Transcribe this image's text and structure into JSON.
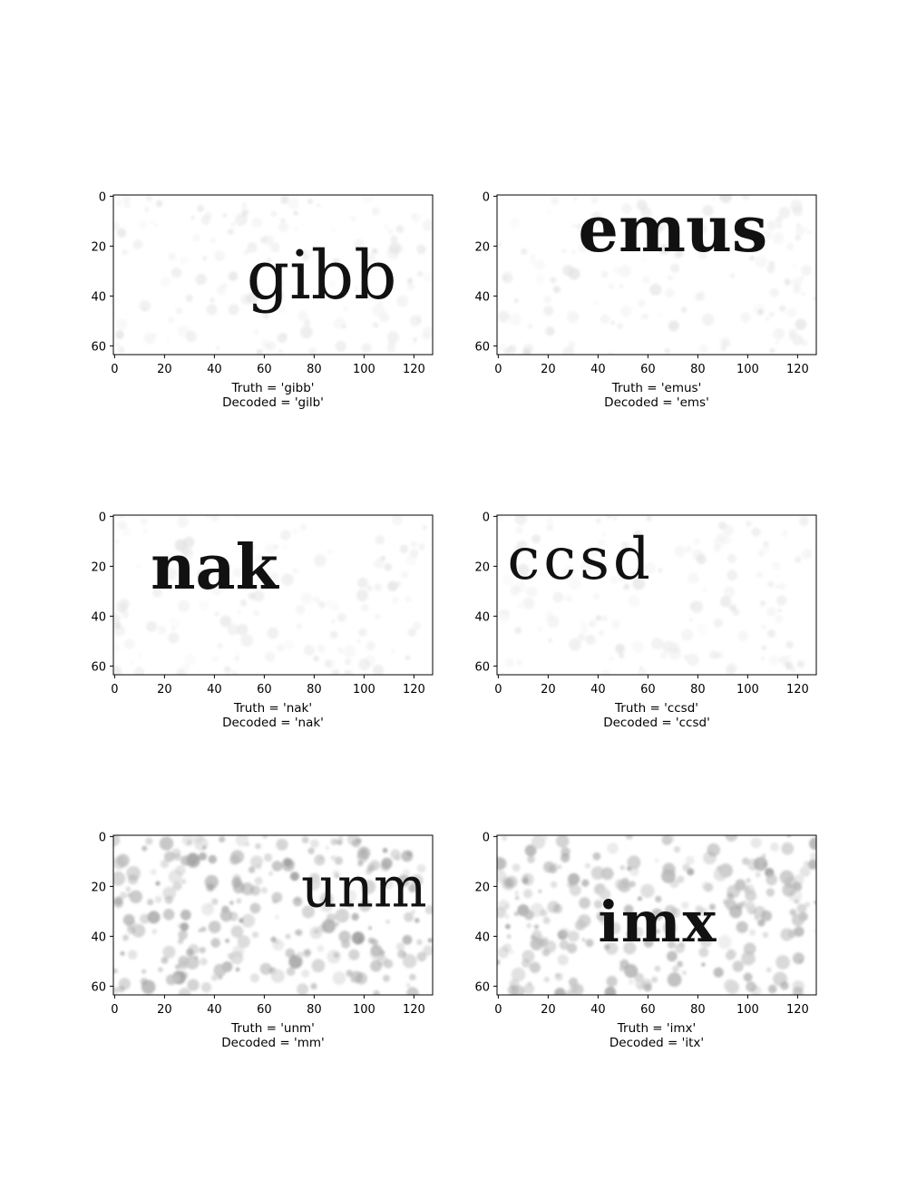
{
  "chart_data": [
    {
      "type": "image",
      "image_size": [
        128,
        64
      ],
      "xticks": [
        0,
        20,
        40,
        60,
        80,
        100,
        120
      ],
      "yticks": [
        0,
        20,
        40,
        60
      ],
      "word_text": "gibb",
      "noise": "light",
      "caption": {
        "truth": "Truth = 'gibb'",
        "decoded": "Decoded = 'gilb'"
      }
    },
    {
      "type": "image",
      "image_size": [
        128,
        64
      ],
      "xticks": [
        0,
        20,
        40,
        60,
        80,
        100,
        120
      ],
      "yticks": [
        0,
        20,
        40,
        60
      ],
      "word_text": "emus",
      "noise": "light",
      "caption": {
        "truth": "Truth = 'emus'",
        "decoded": "Decoded = 'ems'"
      }
    },
    {
      "type": "image",
      "image_size": [
        128,
        64
      ],
      "xticks": [
        0,
        20,
        40,
        60,
        80,
        100,
        120
      ],
      "yticks": [
        0,
        20,
        40,
        60
      ],
      "word_text": "nak",
      "noise": "light",
      "caption": {
        "truth": "Truth = 'nak'",
        "decoded": "Decoded = 'nak'"
      }
    },
    {
      "type": "image",
      "image_size": [
        128,
        64
      ],
      "xticks": [
        0,
        20,
        40,
        60,
        80,
        100,
        120
      ],
      "yticks": [
        0,
        20,
        40,
        60
      ],
      "word_text": "ccsd",
      "noise": "light",
      "caption": {
        "truth": "Truth = 'ccsd'",
        "decoded": "Decoded = 'ccsd'"
      }
    },
    {
      "type": "image",
      "image_size": [
        128,
        64
      ],
      "xticks": [
        0,
        20,
        40,
        60,
        80,
        100,
        120
      ],
      "yticks": [
        0,
        20,
        40,
        60
      ],
      "word_text": "unm",
      "noise": "heavy",
      "caption": {
        "truth": "Truth = 'unm'",
        "decoded": "Decoded = 'mm'"
      }
    },
    {
      "type": "image",
      "image_size": [
        128,
        64
      ],
      "xticks": [
        0,
        20,
        40,
        60,
        80,
        100,
        120
      ],
      "yticks": [
        0,
        20,
        40,
        60
      ],
      "word_text": "imx",
      "noise": "heavy",
      "caption": {
        "truth": "Truth = 'imx'",
        "decoded": "Decoded = 'itx'"
      }
    }
  ]
}
